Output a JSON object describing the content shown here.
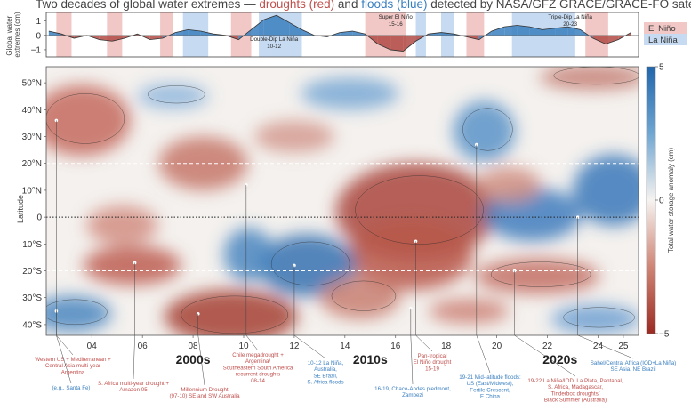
{
  "chart_data": {
    "type": "heatmap",
    "title_parts": [
      {
        "text": "Two decades of global water extremes — ",
        "color": "#444444"
      },
      {
        "text": "droughts (red)",
        "color": "#c0504d"
      },
      {
        "text": " and ",
        "color": "#444444"
      },
      {
        "text": "floods (blue)",
        "color": "#3a7fc0"
      },
      {
        "text": " detected  by NASA/GFZ GRACE/GRACE-FO satellites",
        "color": "#444444"
      }
    ],
    "top_panel": {
      "ylabel": "Global water extremes (cm)",
      "ylabel_lines": [
        "Global water",
        "extremes (cm)"
      ],
      "yticks": [
        1,
        0,
        -1
      ],
      "ylim": [
        -1.5,
        1.6
      ],
      "legend": [
        {
          "label": "El Niño",
          "color": "#c0504d"
        },
        {
          "label": "La Niña",
          "color": "#3a7fc0"
        }
      ],
      "el_nino_periods": [
        [
          2002.6,
          2003.2
        ],
        [
          2004.6,
          2005.2
        ],
        [
          2006.7,
          2007.2
        ],
        [
          2009.5,
          2010.3
        ],
        [
          2014.8,
          2016.4
        ],
        [
          2018.8,
          2019.5
        ],
        [
          2023.5,
          2024.4
        ]
      ],
      "la_nina_periods": [
        [
          2007.6,
          2008.6
        ],
        [
          2010.6,
          2012.3
        ],
        [
          2016.8,
          2017.2
        ],
        [
          2017.8,
          2018.3
        ],
        [
          2020.6,
          2023.1
        ]
      ],
      "series": {
        "x": [
          2002.3,
          2002.8,
          2003.3,
          2003.8,
          2004.3,
          2004.8,
          2005.3,
          2005.8,
          2006.3,
          2006.8,
          2007.3,
          2007.8,
          2008.3,
          2008.8,
          2009.3,
          2009.8,
          2010.3,
          2010.8,
          2011.3,
          2011.8,
          2012.3,
          2012.8,
          2013.3,
          2013.8,
          2014.3,
          2014.8,
          2015.3,
          2015.8,
          2016.3,
          2016.8,
          2017.3,
          2017.8,
          2018.3,
          2018.8,
          2019.3,
          2019.8,
          2020.3,
          2020.8,
          2021.3,
          2021.8,
          2022.3,
          2022.8,
          2023.3,
          2023.8,
          2024.3,
          2024.8,
          2025.3
        ],
        "y": [
          0.3,
          0.1,
          -0.2,
          0.0,
          -0.3,
          -0.4,
          -0.2,
          0.1,
          -0.3,
          -0.2,
          0.2,
          0.4,
          0.3,
          0.1,
          0.0,
          -0.3,
          0.4,
          1.1,
          1.4,
          0.9,
          0.4,
          0.0,
          -0.1,
          0.2,
          0.3,
          0.1,
          -0.6,
          -1.0,
          -1.1,
          -0.4,
          0.1,
          0.2,
          0.1,
          -0.1,
          -0.3,
          0.3,
          0.6,
          0.7,
          0.6,
          0.4,
          0.5,
          0.6,
          0.4,
          -0.2,
          -0.6,
          -0.3,
          0.2
        ]
      },
      "annotations": [
        {
          "lines": [
            "Super El Niño",
            "15-16"
          ],
          "x": 2016.0
        },
        {
          "lines": [
            "Double-Dip La Niña",
            "10-12"
          ],
          "x": 2011.2
        },
        {
          "lines": [
            "Triple-Dip La Niña",
            "20-23"
          ],
          "x": 2022.9
        }
      ]
    },
    "heatmap": {
      "ylabel": "Latitude",
      "ytick_labels": [
        "50°N",
        "40°N",
        "30°N",
        "20°N",
        "10°N",
        "0",
        "10°S",
        "20°S",
        "30°S",
        "40°S"
      ],
      "ytick_values": [
        50,
        40,
        30,
        20,
        10,
        0,
        -10,
        -20,
        -30,
        -40
      ],
      "ylim": [
        -44,
        56
      ],
      "xlim": [
        2002.2,
        2025.6
      ],
      "xtick_labels": [
        "04",
        "06",
        "08",
        "10",
        "12",
        "14",
        "16",
        "18",
        "20",
        "22",
        "24",
        "25"
      ],
      "xtick_values": [
        2004,
        2006,
        2008,
        2010,
        2012,
        2014,
        2016,
        2018,
        2020,
        2022,
        2024,
        2025
      ],
      "decade_labels": [
        {
          "label": "2000s",
          "x": 2008.0
        },
        {
          "label": "2010s",
          "x": 2015.0
        },
        {
          "label": "2020s",
          "x": 2022.5
        }
      ],
      "dashed_lines_lat": [
        20,
        -20
      ],
      "dotted_line_lat": 0,
      "colorbar": {
        "label": "Total water storage anomaly (cm)",
        "min": -5,
        "max": 5,
        "ticks": [
          5,
          0,
          -5
        ]
      },
      "events": [
        {
          "x": 2002.6,
          "lat": 36,
          "color": "#c0504d",
          "lines": [
            "Western US + Mediterranean +",
            "Central Asia multi-year",
            "Argentina"
          ]
        },
        {
          "x": 2002.6,
          "lat": -35,
          "color": "#3a7fc0",
          "lines": [
            "(e.g., Santa Fe)"
          ]
        },
        {
          "x": 2005.7,
          "lat": -17,
          "color": "#c0504d",
          "lines": [
            "S. Africa multi-year drought +",
            "Amazon 05"
          ]
        },
        {
          "x": 2008.2,
          "lat": -36,
          "color": "#c0504d",
          "lines": [
            "Millennium Drought",
            "(97-10)  SE and SW Australia"
          ]
        },
        {
          "x": 2010.1,
          "lat": 12,
          "color": "#c0504d",
          "lines": [
            "Chile megadrought +",
            "Argentina/",
            "Southeastern South America",
            "recurrent droughts",
            "08-14"
          ]
        },
        {
          "x": 2012.0,
          "lat": -18,
          "color": "#3a7fc0",
          "lines": [
            "10-12 La Niña,",
            "Australia,",
            "SE Brazil,",
            "S. Africa floods"
          ]
        },
        {
          "x": 2016.8,
          "lat": -9,
          "color": "#c0504d",
          "lines": [
            "Pan-tropical",
            "El Niño drought",
            "15-19"
          ]
        },
        {
          "x": 2016.6,
          "lat": -34,
          "color": "#3a7fc0",
          "lines": [
            "16-19, Chaco-Andes piedmont,",
            "Zambezi"
          ]
        },
        {
          "x": 2019.2,
          "lat": 27,
          "color": "#3a7fc0",
          "lines": [
            "19-21 Mid-latitude floods:",
            "US (East/Midwest),",
            "Fertile Crescent,",
            "E China"
          ]
        },
        {
          "x": 2020.7,
          "lat": -20,
          "color": "#c0504d",
          "lines": [
            "19-22 La Niña/IOD: La Plata, Pantanal,",
            "S. Africa, Madagascar,",
            "Tinderbox droughts/",
            "Black Summer (Australia)"
          ]
        },
        {
          "x": 2023.2,
          "lat": 0,
          "color": "#3a7fc0",
          "lines": [
            "Sahel/Central Africa (IOD+La Niña)",
            "SE Asia, NE Brazil"
          ]
        }
      ]
    }
  }
}
